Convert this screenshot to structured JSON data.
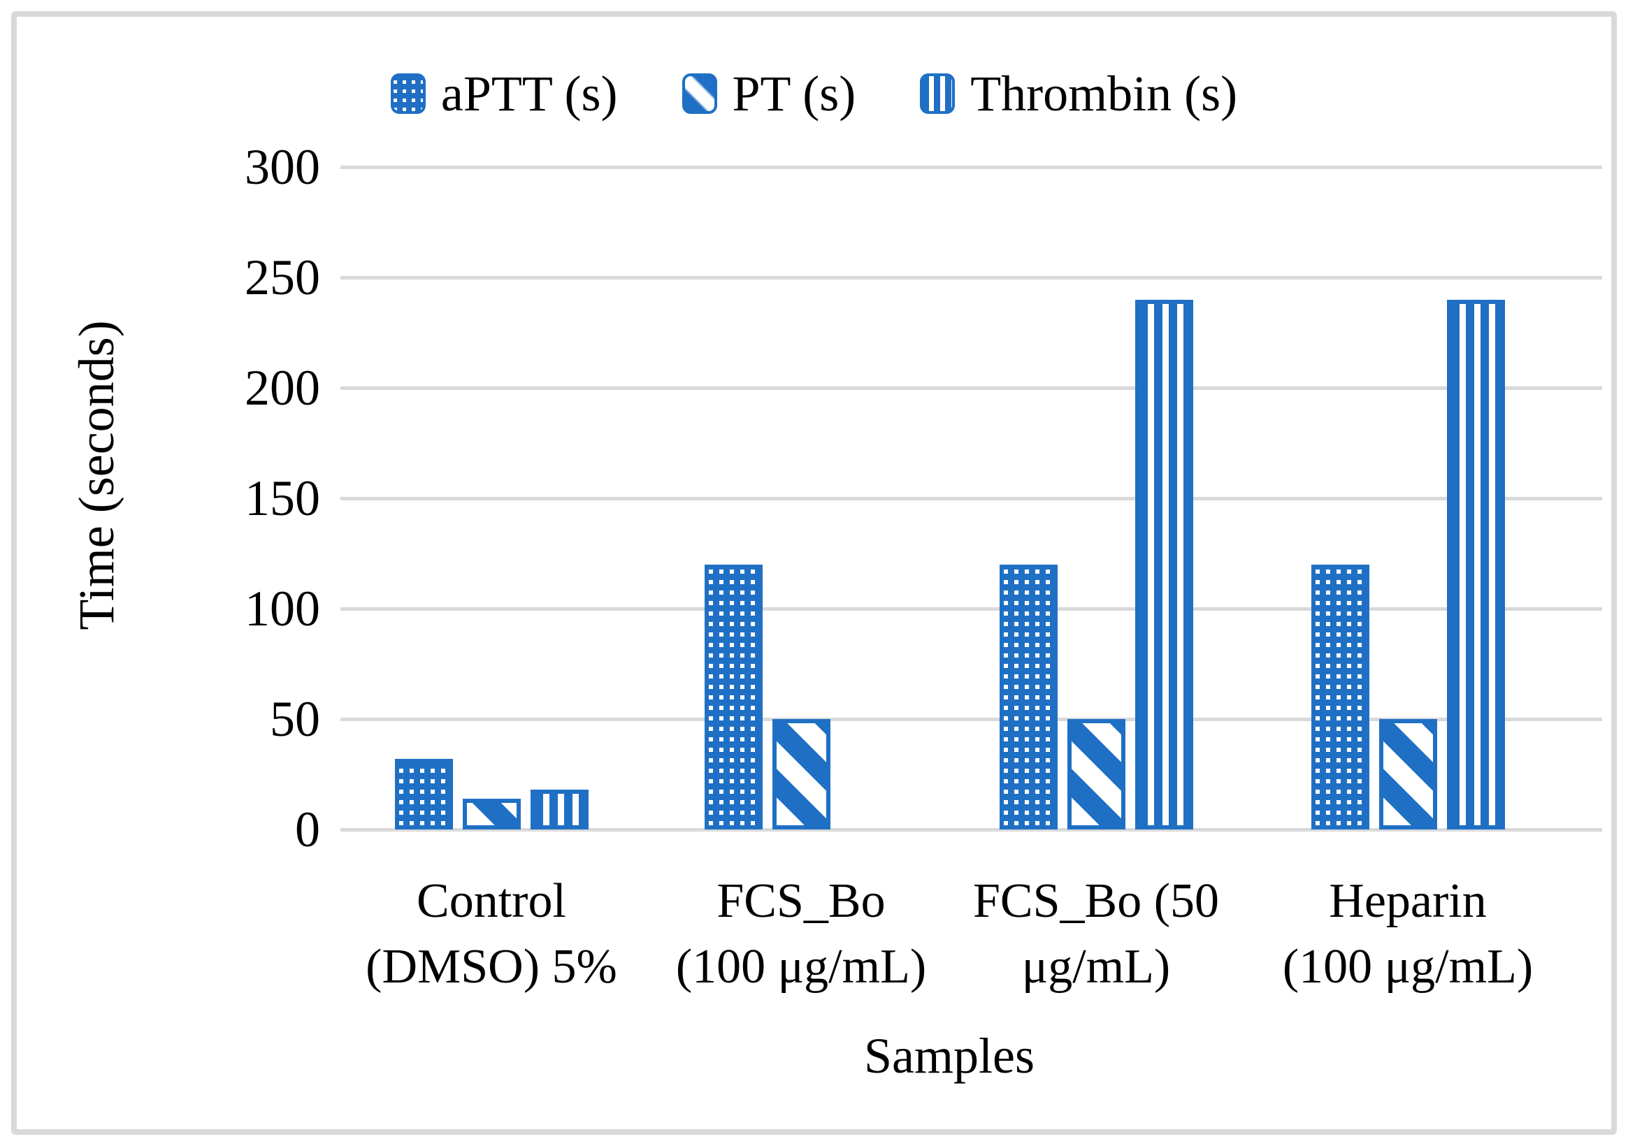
{
  "chart_data": {
    "type": "bar",
    "title": "",
    "categories": [
      "Control (DMSO) 5%",
      "FCS_Bo (100 μg/mL)",
      "FCS_Bo (50 μg/mL)",
      "Heparin (100 μg/mL)"
    ],
    "categories_lines": [
      [
        "Control",
        "(DMSO) 5%"
      ],
      [
        "FCS_Bo",
        "(100 μg/mL)"
      ],
      [
        "FCS_Bo (50",
        "μg/mL)"
      ],
      [
        "Heparin",
        "(100 μg/mL)"
      ]
    ],
    "series": [
      {
        "name": "aPTT (s)",
        "pattern": "dots",
        "values": [
          32,
          120,
          120,
          120
        ]
      },
      {
        "name": "PT (s)",
        "pattern": "diagonal",
        "values": [
          14,
          50,
          50,
          50
        ]
      },
      {
        "name": "Thrombin (s)",
        "pattern": "vertical",
        "values": [
          18,
          null,
          240,
          240
        ]
      }
    ],
    "xlabel": "Samples",
    "ylabel": "Time (seconds)",
    "ylim": [
      0,
      300
    ],
    "yticks": [
      0,
      50,
      100,
      150,
      200,
      250,
      300
    ],
    "grid": true,
    "legend_position": "top",
    "colors": {
      "bar_blue": "#1f70c4",
      "gridline": "#d9d9d9",
      "frame_border": "#d9d9d9",
      "text": "#000000"
    }
  }
}
